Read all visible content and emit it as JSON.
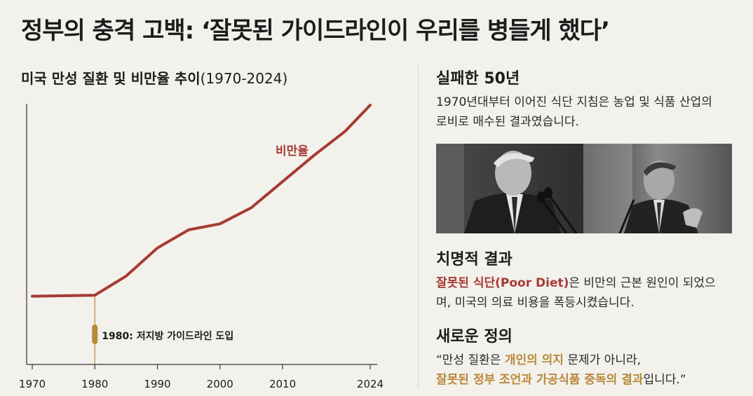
{
  "headline": "정부의 충격 고백: ‘잘못된 가이드라인이 우리를 병들게 했다’",
  "chart_title": {
    "bold": "미국 만성 질환 및 비만율 추이",
    "range": "(1970-2024)"
  },
  "chart_data": {
    "type": "line",
    "title": "미국 만성 질환 및 비만율 추이(1970-2024)",
    "x_ticks": [
      1970,
      1980,
      1990,
      2000,
      2010,
      2024
    ],
    "xlim": [
      1970,
      2024
    ],
    "ylim": [
      0,
      100
    ],
    "series": [
      {
        "name": "비만율",
        "color": "#a63a34",
        "x": [
          1970,
          1980,
          1985,
          1990,
          1995,
          2000,
          2005,
          2010,
          2015,
          2020,
          2024
        ],
        "y": [
          5,
          5.5,
          15,
          29,
          38,
          41,
          49,
          62,
          75,
          87,
          100
        ]
      }
    ],
    "annotation": {
      "x": 1980,
      "label": "1980: 저지방 가이드라인 도입"
    },
    "grid": false
  },
  "colors": {
    "accent_red": "#a63a34",
    "accent_gold": "#b8893a",
    "background": "#f3f1ec"
  },
  "sections": {
    "failure": {
      "title": "실패한 50년",
      "body": "1970년대부터 이어진 식단 지침은 농업 및 식품 산업의 로비로 매수된 결과였습니다."
    },
    "consequence": {
      "title": "치명적 결과",
      "highlight": "잘못된 식단(Poor Diet)",
      "body_rest": "은 비만의 근본 원인이 되었으며, 미국의 의료 비용을 폭등시켰습니다."
    },
    "definition": {
      "title": "새로운 정의",
      "open_quote": "“만성 질환은 ",
      "highlight1": "개인의 의지",
      "middle": " 문제가 아니라,",
      "highlight2": "잘못된 정부 조언과 가공식품 중독의 결과",
      "end": "입니다.”"
    }
  }
}
